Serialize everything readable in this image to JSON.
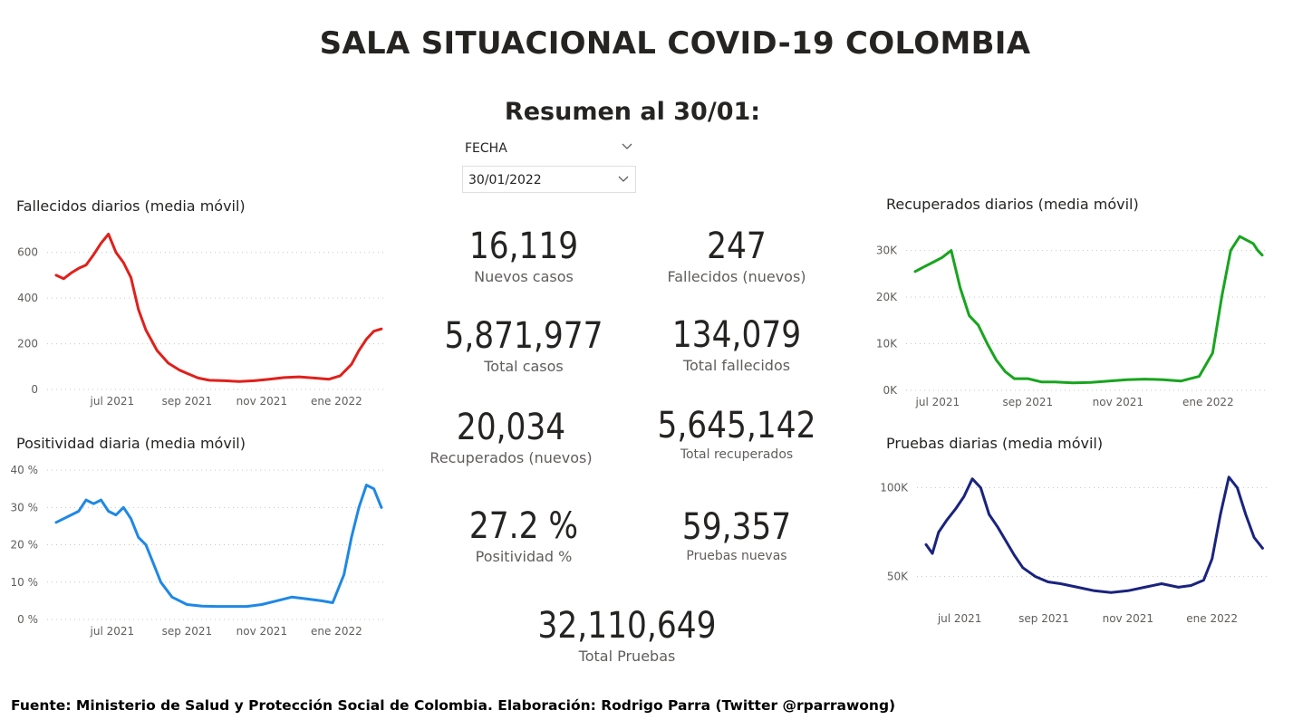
{
  "header": {
    "title": "SALA SITUACIONAL COVID-19 COLOMBIA",
    "subtitle": "Resumen al 30/01:"
  },
  "slicer": {
    "label": "FECHA",
    "value": "30/01/2022"
  },
  "kpis": [
    {
      "value": "16,119",
      "label": "Nuevos casos"
    },
    {
      "value": "247",
      "label": "Fallecidos (nuevos)"
    },
    {
      "value": "5,871,977",
      "label": "Total casos"
    },
    {
      "value": "134,079",
      "label": "Total fallecidos"
    },
    {
      "value": "20,034",
      "label": "Recuperados (nuevos)"
    },
    {
      "value": "5,645,142",
      "label": "Total recuperados"
    },
    {
      "value": "27.2 %",
      "label": "Positividad %"
    },
    {
      "value": "59,357",
      "label": "Pruebas nuevas"
    },
    {
      "value": "32,110,649",
      "label": "Total Pruebas"
    }
  ],
  "footer": "Fuente: Ministerio de Salud y Protección Social de Colombia. Elaboración: Rodrigo Parra (Twitter @rparrawong)",
  "chart_data": [
    {
      "id": "fallecidos",
      "type": "line",
      "title": "Fallecidos diarios (media móvil)",
      "color": "#e0201b",
      "x_ticks": [
        "jul 2021",
        "sep 2021",
        "nov 2021",
        "ene 2022"
      ],
      "x_tick_pos": [
        1.0,
        3.0,
        5.0,
        7.0
      ],
      "xlim": [
        -0.5,
        8.3
      ],
      "y_ticks": [
        0,
        200,
        400,
        600
      ],
      "y_tick_labels": [
        "0",
        "200",
        "400",
        "600"
      ],
      "ylim": [
        0,
        690
      ],
      "grid": true,
      "x": [
        -0.5,
        -0.3,
        -0.1,
        0.1,
        0.3,
        0.5,
        0.7,
        0.9,
        1.1,
        1.3,
        1.5,
        1.7,
        1.9,
        2.2,
        2.5,
        2.8,
        3.0,
        3.3,
        3.6,
        4.0,
        4.4,
        4.8,
        5.2,
        5.6,
        6.0,
        6.4,
        6.8,
        7.1,
        7.4,
        7.6,
        7.8,
        8.0,
        8.2
      ],
      "values": [
        500,
        485,
        510,
        530,
        545,
        590,
        640,
        680,
        600,
        555,
        490,
        350,
        260,
        170,
        115,
        85,
        70,
        50,
        40,
        38,
        35,
        38,
        45,
        52,
        55,
        50,
        45,
        60,
        110,
        170,
        220,
        255,
        265
      ]
    },
    {
      "id": "positividad",
      "type": "line",
      "title": "Positividad diaria (media móvil)",
      "color": "#1e88e5",
      "x_ticks": [
        "jul 2021",
        "sep 2021",
        "nov 2021",
        "ene 2022"
      ],
      "x_tick_pos": [
        1.0,
        3.0,
        5.0,
        7.0
      ],
      "xlim": [
        -0.5,
        8.3
      ],
      "y_ticks": [
        0,
        10,
        20,
        30,
        40
      ],
      "y_tick_labels": [
        "0 %",
        "10 %",
        "20 %",
        "30 %",
        "40 %"
      ],
      "ylim": [
        0,
        41
      ],
      "grid": true,
      "x": [
        -0.5,
        -0.3,
        -0.1,
        0.1,
        0.3,
        0.5,
        0.7,
        0.9,
        1.1,
        1.3,
        1.5,
        1.7,
        1.9,
        2.1,
        2.3,
        2.6,
        3.0,
        3.4,
        3.8,
        4.2,
        4.6,
        5.0,
        5.4,
        5.8,
        6.2,
        6.6,
        6.9,
        7.2,
        7.4,
        7.6,
        7.8,
        8.0,
        8.2
      ],
      "values": [
        26,
        27,
        28,
        29,
        32,
        31,
        32,
        29,
        28,
        30,
        27,
        22,
        20,
        15,
        10,
        6,
        4,
        3.6,
        3.5,
        3.5,
        3.5,
        4,
        5,
        6,
        5.5,
        5,
        4.5,
        12,
        22,
        30,
        36,
        35,
        30
      ]
    },
    {
      "id": "recuperados",
      "type": "line",
      "title": "Recuperados diarios (media móvil)",
      "color": "#17a51e",
      "x_ticks": [
        "jul 2021",
        "sep 2021",
        "nov 2021",
        "ene 2022"
      ],
      "x_tick_pos": [
        1.0,
        3.0,
        5.0,
        7.0
      ],
      "xlim": [
        0.5,
        8.3
      ],
      "y_ticks": [
        0,
        10000,
        20000,
        30000
      ],
      "y_tick_labels": [
        "0K",
        "10K",
        "20K",
        "30K"
      ],
      "ylim": [
        0,
        34000
      ],
      "grid": true,
      "x": [
        0.5,
        0.7,
        0.9,
        1.1,
        1.3,
        1.5,
        1.7,
        1.9,
        2.1,
        2.3,
        2.5,
        2.7,
        3.0,
        3.3,
        3.6,
        4.0,
        4.4,
        4.8,
        5.2,
        5.6,
        6.0,
        6.4,
        6.8,
        7.1,
        7.3,
        7.5,
        7.7,
        7.9,
        8.0,
        8.1,
        8.2
      ],
      "values": [
        25500,
        26500,
        27500,
        28500,
        30000,
        22000,
        16000,
        14000,
        10000,
        6500,
        4000,
        2500,
        2500,
        1800,
        1800,
        1600,
        1700,
        2000,
        2300,
        2400,
        2300,
        2000,
        3000,
        8000,
        20000,
        30000,
        33000,
        32000,
        31500,
        30000,
        29000
      ]
    },
    {
      "id": "pruebas",
      "type": "line",
      "title": "Pruebas diarias (media móvil)",
      "color": "#1a237e",
      "x_ticks": [
        "jul 2021",
        "sep 2021",
        "nov 2021",
        "ene 2022"
      ],
      "x_tick_pos": [
        1.0,
        3.0,
        5.0,
        7.0
      ],
      "xlim": [
        0.2,
        8.3
      ],
      "y_ticks": [
        50000,
        100000
      ],
      "y_tick_labels": [
        "50K",
        "100K"
      ],
      "ylim": [
        33000,
        112000
      ],
      "grid": true,
      "x": [
        0.2,
        0.35,
        0.5,
        0.7,
        0.9,
        1.1,
        1.3,
        1.5,
        1.7,
        1.9,
        2.1,
        2.3,
        2.5,
        2.8,
        3.1,
        3.4,
        3.8,
        4.2,
        4.6,
        5.0,
        5.4,
        5.8,
        6.2,
        6.5,
        6.8,
        7.0,
        7.2,
        7.4,
        7.6,
        7.8,
        8.0,
        8.2
      ],
      "values": [
        68000,
        63000,
        75000,
        82000,
        88000,
        95000,
        105000,
        100000,
        85000,
        78000,
        70000,
        62000,
        55000,
        50000,
        47000,
        46000,
        44000,
        42000,
        41000,
        42000,
        44000,
        46000,
        44000,
        45000,
        48000,
        60000,
        85000,
        106000,
        100000,
        85000,
        72000,
        66000
      ]
    }
  ]
}
